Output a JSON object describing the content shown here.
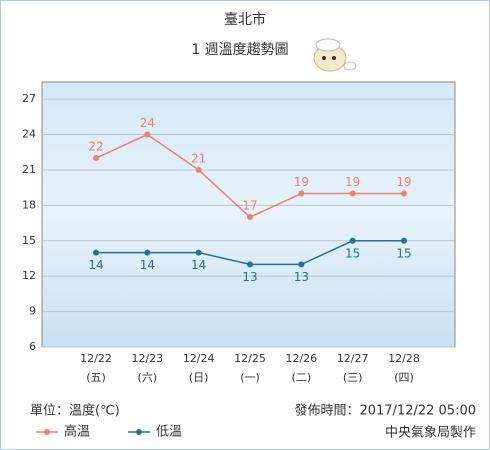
{
  "chart_data": {
    "type": "line",
    "title": "臺北市",
    "subtitle": "1 週溫度趨勢圖",
    "categories": [
      "12/22",
      "12/23",
      "12/24",
      "12/25",
      "12/26",
      "12/27",
      "12/28"
    ],
    "category_days": [
      "(五)",
      "(六)",
      "(日)",
      "(一)",
      "(二)",
      "(三)",
      "(四)"
    ],
    "series": [
      {
        "name": "高溫",
        "color": "#f07f6e",
        "values": [
          22,
          24,
          21,
          17,
          19,
          19,
          19
        ]
      },
      {
        "name": "低溫",
        "color": "#23709b",
        "values": [
          14,
          14,
          14,
          13,
          13,
          15,
          15
        ]
      }
    ],
    "ylim": [
      6,
      28.45
    ],
    "yticks": [
      6,
      9,
      12,
      15,
      18,
      21,
      24,
      27
    ],
    "grid": true,
    "unit_note": "單位：溫度(℃)",
    "publish_time": "發佈時間：2017/12/22 05:00",
    "credit": "中央氣象局製作"
  }
}
